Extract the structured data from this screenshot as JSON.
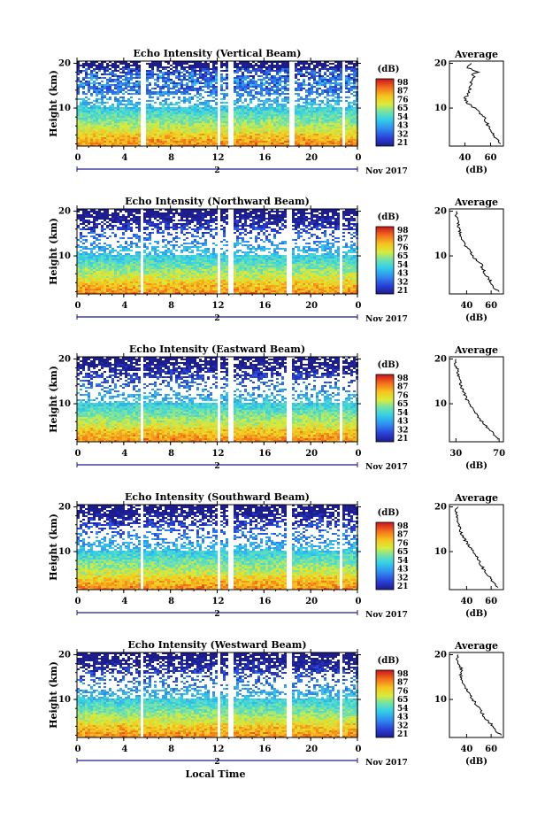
{
  "figure": {
    "xlabel": "Local Time",
    "date_label": "Nov 2017",
    "day_label": "2",
    "ylabel": "Height (km)",
    "cbar_unit": "(dB)",
    "avg_title": "Average",
    "avg_xlabel": "(dB)"
  },
  "chart_data": [
    {
      "type": "heatmap",
      "title": "Echo Intensity (Vertical Beam)",
      "xlabel": "",
      "ylabel": "Height (km)",
      "x_ticks": [
        "0",
        "4",
        "8",
        "12",
        "16",
        "20",
        "0"
      ],
      "xlim": [
        0,
        24
      ],
      "y_ticks": [
        "10",
        "20"
      ],
      "ylim": [
        1.5,
        20.5
      ],
      "colorbar": {
        "label": "(dB)",
        "ticks": [
          "21",
          "32",
          "43",
          "54",
          "65",
          "76",
          "87",
          "98"
        ],
        "range": [
          21,
          98
        ]
      },
      "data_gaps_hours": [
        [
          5.3,
          5.5
        ],
        [
          5.65,
          5.85
        ],
        [
          11.9,
          12.2
        ],
        [
          12.9,
          13.2
        ],
        [
          18.0,
          18.6
        ],
        [
          22.5,
          22.8
        ]
      ],
      "profile": {
        "title": "Average",
        "xlabel": "(dB)",
        "x_ticks": [
          "40",
          "60"
        ],
        "xlim": [
          28,
          70
        ],
        "y_ticks": [
          "10",
          "20"
        ],
        "ylim": [
          1.5,
          20.5
        ],
        "height_km": [
          2,
          3,
          4,
          5,
          6,
          8,
          10,
          11,
          12,
          14,
          16,
          17,
          17.5,
          18,
          19,
          20
        ],
        "db": [
          68,
          65,
          62,
          61,
          58,
          55,
          48,
          42,
          40,
          44,
          45,
          48,
          45,
          50,
          42,
          45
        ]
      }
    },
    {
      "type": "heatmap",
      "title": "Echo Intensity (Northward Beam)",
      "xlabel": "",
      "ylabel": "Height (km)",
      "x_ticks": [
        "0",
        "4",
        "8",
        "12",
        "16",
        "20",
        "0"
      ],
      "xlim": [
        0,
        24
      ],
      "y_ticks": [
        "10",
        "20"
      ],
      "ylim": [
        1.5,
        20.5
      ],
      "colorbar": {
        "label": "(dB)",
        "ticks": [
          "21",
          "32",
          "43",
          "54",
          "65",
          "76",
          "87",
          "98"
        ],
        "range": [
          21,
          98
        ]
      },
      "data_gaps_hours": [
        [
          5.3,
          5.5
        ],
        [
          11.9,
          12.2
        ],
        [
          12.9,
          13.2
        ],
        [
          17.9,
          18.3
        ],
        [
          22.3,
          22.6
        ]
      ],
      "profile": {
        "title": "Average",
        "xlabel": "(dB)",
        "x_ticks": [
          "40",
          "60"
        ],
        "xlim": [
          26,
          70
        ],
        "y_ticks": [
          "10",
          "20"
        ],
        "ylim": [
          1.5,
          20.5
        ],
        "height_km": [
          2,
          3,
          4,
          5,
          6,
          8,
          10,
          12,
          14,
          16,
          18,
          19,
          20
        ],
        "db": [
          66,
          62,
          60,
          58,
          55,
          52,
          45,
          40,
          36,
          34,
          33,
          31,
          32
        ]
      }
    },
    {
      "type": "heatmap",
      "title": "Echo Intensity (Eastward Beam)",
      "xlabel": "",
      "ylabel": "Height (km)",
      "x_ticks": [
        "0",
        "4",
        "8",
        "12",
        "16",
        "20",
        "0"
      ],
      "xlim": [
        0,
        24
      ],
      "y_ticks": [
        "10",
        "20"
      ],
      "ylim": [
        1.5,
        20.5
      ],
      "colorbar": {
        "label": "(dB)",
        "ticks": [
          "21",
          "32",
          "43",
          "54",
          "65",
          "76",
          "87",
          "98"
        ],
        "range": [
          21,
          98
        ]
      },
      "data_gaps_hours": [
        [
          5.3,
          5.5
        ],
        [
          11.9,
          12.2
        ],
        [
          12.9,
          13.2
        ],
        [
          17.9,
          18.3
        ],
        [
          22.3,
          22.6
        ]
      ],
      "profile": {
        "title": "Average",
        "xlabel": "(dB)",
        "x_ticks": [
          "30",
          "70"
        ],
        "xlim": [
          24,
          74
        ],
        "y_ticks": [
          "10",
          "20"
        ],
        "ylim": [
          1.5,
          20.5
        ],
        "height_km": [
          2,
          3,
          4,
          5,
          6,
          8,
          10,
          12,
          14,
          16,
          18,
          19,
          20
        ],
        "db": [
          70,
          66,
          62,
          58,
          54,
          48,
          42,
          38,
          35,
          33,
          31,
          29,
          30
        ]
      }
    },
    {
      "type": "heatmap",
      "title": "Echo Intensity (Southward Beam)",
      "xlabel": "",
      "ylabel": "Height (km)",
      "x_ticks": [
        "0",
        "4",
        "8",
        "12",
        "16",
        "20",
        "0"
      ],
      "xlim": [
        0,
        24
      ],
      "y_ticks": [
        "10",
        "20"
      ],
      "ylim": [
        1.5,
        20.5
      ],
      "colorbar": {
        "label": "(dB)",
        "ticks": [
          "21",
          "32",
          "43",
          "54",
          "65",
          "76",
          "87",
          "98"
        ],
        "range": [
          21,
          98
        ]
      },
      "data_gaps_hours": [
        [
          5.3,
          5.5
        ],
        [
          11.9,
          12.2
        ],
        [
          12.9,
          13.2
        ],
        [
          17.9,
          18.3
        ],
        [
          22.3,
          22.6
        ]
      ],
      "profile": {
        "title": "Average",
        "xlabel": "(dB)",
        "x_ticks": [
          "40",
          "60"
        ],
        "xlim": [
          26,
          70
        ],
        "y_ticks": [
          "10",
          "20"
        ],
        "ylim": [
          1.5,
          20.5
        ],
        "height_km": [
          2,
          3,
          4,
          5,
          6,
          8,
          10,
          12,
          14,
          16,
          18,
          19,
          20
        ],
        "db": [
          66,
          62,
          60,
          57,
          54,
          50,
          45,
          40,
          36,
          34,
          32,
          31,
          33
        ]
      }
    },
    {
      "type": "heatmap",
      "title": "Echo Intensity (Westward Beam)",
      "xlabel": "Local Time",
      "ylabel": "Height (km)",
      "x_ticks": [
        "0",
        "4",
        "8",
        "12",
        "16",
        "20",
        "0"
      ],
      "xlim": [
        0,
        24
      ],
      "y_ticks": [
        "10",
        "20"
      ],
      "ylim": [
        1.5,
        20.5
      ],
      "colorbar": {
        "label": "(dB)",
        "ticks": [
          "21",
          "32",
          "43",
          "54",
          "65",
          "76",
          "87",
          "98"
        ],
        "range": [
          21,
          98
        ]
      },
      "data_gaps_hours": [
        [
          5.3,
          5.5
        ],
        [
          11.9,
          12.2
        ],
        [
          12.9,
          13.2
        ],
        [
          17.9,
          18.3
        ],
        [
          22.3,
          22.6
        ]
      ],
      "profile": {
        "title": "Average",
        "xlabel": "(dB)",
        "x_ticks": [
          "40",
          "60"
        ],
        "xlim": [
          26,
          70
        ],
        "y_ticks": [
          "10",
          "20"
        ],
        "ylim": [
          1.5,
          20.5
        ],
        "height_km": [
          2,
          3,
          4,
          5,
          6,
          8,
          10,
          12,
          14,
          16,
          17,
          18,
          19,
          20
        ],
        "db": [
          68,
          64,
          62,
          58,
          55,
          50,
          45,
          40,
          37,
          35,
          36,
          33,
          32,
          33
        ]
      }
    }
  ]
}
